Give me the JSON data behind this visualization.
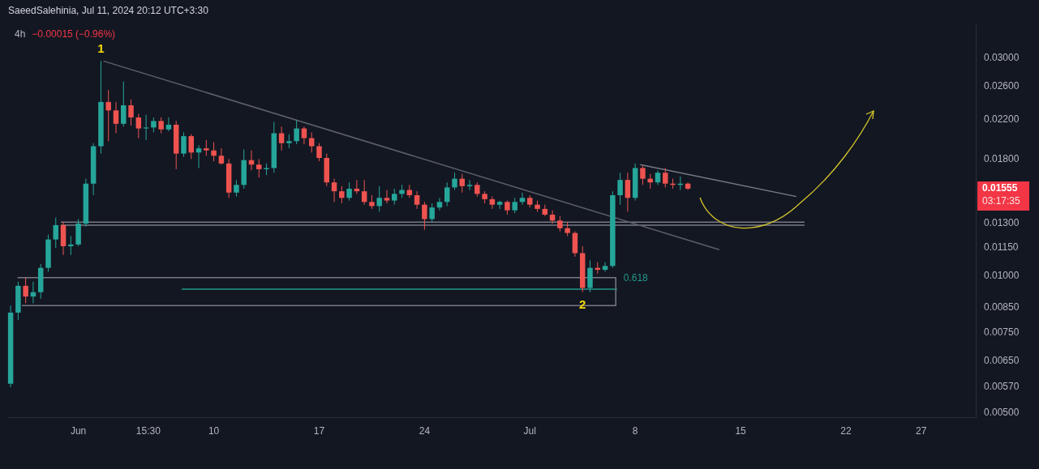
{
  "chart_data": {
    "type": "candlestick",
    "title": "4h",
    "subtitle": "−0.00015 (−0.96%)",
    "x": [
      "2024-05-27T12:00",
      "2024-05-28T00:00",
      "2024-05-28T12:00",
      "2024-05-29T00:00",
      "2024-05-29T12:00",
      "2024-05-30T00:00",
      "2024-05-30T12:00",
      "2024-05-31T00:00",
      "2024-05-31T12:00",
      "2024-06-01T00:00",
      "2024-06-01T12:00",
      "2024-06-02T00:00",
      "2024-06-02T12:00",
      "2024-06-03T00:00",
      "2024-06-03T12:00",
      "2024-06-04T00:00",
      "2024-06-04T12:00",
      "2024-06-05T00:00",
      "2024-06-05T12:00",
      "2024-06-06T00:00",
      "2024-06-06T12:00",
      "2024-06-07T00:00",
      "2024-06-07T12:00",
      "2024-06-08T00:00",
      "2024-06-08T12:00",
      "2024-06-09T00:00",
      "2024-06-09T12:00",
      "2024-06-10T00:00",
      "2024-06-10T12:00",
      "2024-06-11T00:00",
      "2024-06-11T12:00",
      "2024-06-12T00:00",
      "2024-06-12T12:00",
      "2024-06-13T00:00",
      "2024-06-13T12:00",
      "2024-06-14T00:00",
      "2024-06-14T12:00",
      "2024-06-15T00:00",
      "2024-06-15T12:00",
      "2024-06-16T00:00",
      "2024-06-16T12:00",
      "2024-06-17T00:00",
      "2024-06-17T12:00",
      "2024-06-18T00:00",
      "2024-06-18T12:00",
      "2024-06-19T00:00",
      "2024-06-19T12:00",
      "2024-06-20T00:00",
      "2024-06-20T12:00",
      "2024-06-21T00:00",
      "2024-06-21T12:00",
      "2024-06-22T00:00",
      "2024-06-22T12:00",
      "2024-06-23T00:00",
      "2024-06-23T12:00",
      "2024-06-24T00:00",
      "2024-06-24T12:00",
      "2024-06-25T00:00",
      "2024-06-25T12:00",
      "2024-06-26T00:00",
      "2024-06-26T12:00",
      "2024-06-27T00:00",
      "2024-06-27T12:00",
      "2024-06-28T00:00",
      "2024-06-28T12:00",
      "2024-06-29T00:00",
      "2024-06-29T12:00",
      "2024-06-30T00:00",
      "2024-06-30T12:00",
      "2024-07-01T00:00",
      "2024-07-01T12:00",
      "2024-07-02T00:00",
      "2024-07-02T12:00",
      "2024-07-03T00:00",
      "2024-07-03T12:00",
      "2024-07-04T00:00",
      "2024-07-04T12:00",
      "2024-07-05T00:00",
      "2024-07-05T12:00",
      "2024-07-06T00:00",
      "2024-07-06T12:00",
      "2024-07-07T00:00",
      "2024-07-07T12:00",
      "2024-07-08T00:00",
      "2024-07-08T12:00",
      "2024-07-09T00:00",
      "2024-07-09T12:00",
      "2024-07-10T00:00",
      "2024-07-10T12:00",
      "2024-07-11T00:00",
      "2024-07-11T12:00"
    ],
    "ohlc": [
      [
        0.0058,
        0.0086,
        0.0057,
        0.0083
      ],
      [
        0.0083,
        0.0097,
        0.008,
        0.0095
      ],
      [
        0.0095,
        0.0099,
        0.0087,
        0.009
      ],
      [
        0.009,
        0.0097,
        0.0087,
        0.0092
      ],
      [
        0.0092,
        0.0106,
        0.0089,
        0.0104
      ],
      [
        0.0104,
        0.0123,
        0.0102,
        0.012
      ],
      [
        0.012,
        0.0134,
        0.0115,
        0.0129
      ],
      [
        0.0129,
        0.0131,
        0.0111,
        0.0116
      ],
      [
        0.0116,
        0.0122,
        0.0111,
        0.0117
      ],
      [
        0.0117,
        0.0133,
        0.0116,
        0.013
      ],
      [
        0.013,
        0.0163,
        0.0128,
        0.0159
      ],
      [
        0.0159,
        0.0195,
        0.015,
        0.0192
      ],
      [
        0.0192,
        0.0295,
        0.0185,
        0.024
      ],
      [
        0.024,
        0.0255,
        0.0197,
        0.023
      ],
      [
        0.023,
        0.024,
        0.0205,
        0.0215
      ],
      [
        0.0215,
        0.0266,
        0.0212,
        0.0236
      ],
      [
        0.0236,
        0.0243,
        0.0213,
        0.0222
      ],
      [
        0.0222,
        0.0226,
        0.02,
        0.021
      ],
      [
        0.021,
        0.0225,
        0.0198,
        0.0211
      ],
      [
        0.0211,
        0.0222,
        0.0206,
        0.0218
      ],
      [
        0.0218,
        0.0222,
        0.0205,
        0.0209
      ],
      [
        0.0209,
        0.0222,
        0.0207,
        0.0214
      ],
      [
        0.0214,
        0.0218,
        0.0171,
        0.0185
      ],
      [
        0.0185,
        0.0206,
        0.0182,
        0.0202
      ],
      [
        0.0202,
        0.0204,
        0.018,
        0.0186
      ],
      [
        0.0186,
        0.0193,
        0.0172,
        0.019
      ],
      [
        0.019,
        0.0198,
        0.0183,
        0.0188
      ],
      [
        0.0188,
        0.0196,
        0.0178,
        0.0183
      ],
      [
        0.0183,
        0.019,
        0.0175,
        0.0176
      ],
      [
        0.0176,
        0.018,
        0.0148,
        0.0152
      ],
      [
        0.0152,
        0.0162,
        0.0149,
        0.0158
      ],
      [
        0.0158,
        0.0189,
        0.0155,
        0.0179
      ],
      [
        0.0179,
        0.0188,
        0.017,
        0.0175
      ],
      [
        0.0175,
        0.018,
        0.0164,
        0.0171
      ],
      [
        0.0171,
        0.0176,
        0.0166,
        0.0172
      ],
      [
        0.0172,
        0.0217,
        0.0168,
        0.0205
      ],
      [
        0.0205,
        0.0212,
        0.0188,
        0.0195
      ],
      [
        0.0195,
        0.0204,
        0.019,
        0.0197
      ],
      [
        0.0197,
        0.0219,
        0.0194,
        0.021
      ],
      [
        0.021,
        0.0212,
        0.0194,
        0.02
      ],
      [
        0.02,
        0.0206,
        0.0186,
        0.0192
      ],
      [
        0.0192,
        0.0195,
        0.0178,
        0.0181
      ],
      [
        0.0181,
        0.0185,
        0.0157,
        0.016
      ],
      [
        0.016,
        0.0163,
        0.0145,
        0.0153
      ],
      [
        0.0153,
        0.0157,
        0.0144,
        0.0148
      ],
      [
        0.0148,
        0.016,
        0.0146,
        0.0155
      ],
      [
        0.0155,
        0.0162,
        0.0151,
        0.0153
      ],
      [
        0.0153,
        0.0162,
        0.0143,
        0.0145
      ],
      [
        0.0145,
        0.015,
        0.014,
        0.0142
      ],
      [
        0.0142,
        0.0157,
        0.0138,
        0.0148
      ],
      [
        0.0148,
        0.0154,
        0.0144,
        0.0146
      ],
      [
        0.0146,
        0.0155,
        0.0143,
        0.0151
      ],
      [
        0.0151,
        0.0158,
        0.0148,
        0.0154
      ],
      [
        0.0154,
        0.0158,
        0.0148,
        0.015
      ],
      [
        0.015,
        0.0153,
        0.014,
        0.0143
      ],
      [
        0.0143,
        0.0145,
        0.0126,
        0.0133
      ],
      [
        0.0133,
        0.0144,
        0.0131,
        0.0141
      ],
      [
        0.0141,
        0.0148,
        0.0139,
        0.0145
      ],
      [
        0.0145,
        0.016,
        0.0142,
        0.0156
      ],
      [
        0.0156,
        0.0168,
        0.0154,
        0.0163
      ],
      [
        0.0163,
        0.0167,
        0.0152,
        0.0157
      ],
      [
        0.0157,
        0.0162,
        0.0154,
        0.0158
      ],
      [
        0.0158,
        0.016,
        0.0149,
        0.0151
      ],
      [
        0.0151,
        0.0153,
        0.0144,
        0.0147
      ],
      [
        0.0147,
        0.0149,
        0.014,
        0.0143
      ],
      [
        0.0143,
        0.0146,
        0.014,
        0.0145
      ],
      [
        0.0145,
        0.0146,
        0.0136,
        0.0139
      ],
      [
        0.0139,
        0.0148,
        0.0137,
        0.0145
      ],
      [
        0.0145,
        0.0152,
        0.0143,
        0.0148
      ],
      [
        0.0148,
        0.015,
        0.0141,
        0.0143
      ],
      [
        0.0143,
        0.0146,
        0.0138,
        0.014
      ],
      [
        0.014,
        0.0143,
        0.0135,
        0.0136
      ],
      [
        0.0136,
        0.0139,
        0.013,
        0.0132
      ],
      [
        0.0132,
        0.0135,
        0.0125,
        0.0127
      ],
      [
        0.0127,
        0.0131,
        0.0122,
        0.0124
      ],
      [
        0.0124,
        0.0125,
        0.011,
        0.0112
      ],
      [
        0.0112,
        0.0116,
        0.0092,
        0.0094
      ],
      [
        0.0094,
        0.0108,
        0.0092,
        0.0104
      ],
      [
        0.0104,
        0.0107,
        0.0101,
        0.0103
      ],
      [
        0.0103,
        0.0107,
        0.0102,
        0.0105
      ],
      [
        0.0105,
        0.0153,
        0.0104,
        0.015
      ],
      [
        0.015,
        0.0168,
        0.0143,
        0.0162
      ],
      [
        0.0162,
        0.0168,
        0.0138,
        0.0148
      ],
      [
        0.0148,
        0.0176,
        0.0146,
        0.0172
      ],
      [
        0.0172,
        0.0174,
        0.0158,
        0.0163
      ],
      [
        0.0163,
        0.0167,
        0.0155,
        0.016
      ],
      [
        0.016,
        0.017,
        0.0158,
        0.0168
      ],
      [
        0.0168,
        0.0172,
        0.0156,
        0.0159
      ],
      [
        0.0159,
        0.0163,
        0.0155,
        0.0158
      ],
      [
        0.0158,
        0.0165,
        0.0154,
        0.0159
      ],
      [
        0.0159,
        0.016,
        0.0154,
        0.0155
      ]
    ],
    "colors": [
      "#26a69a",
      "#26a69a",
      "#ef5350",
      "#26a69a",
      "#26a69a",
      "#26a69a",
      "#26a69a",
      "#ef5350",
      "#26a69a",
      "#26a69a",
      "#26a69a",
      "#26a69a",
      "#26a69a",
      "#ef5350",
      "#ef5350",
      "#26a69a",
      "#ef5350",
      "#ef5350",
      "#26a69a",
      "#26a69a",
      "#ef5350",
      "#26a69a",
      "#ef5350",
      "#26a69a",
      "#ef5350",
      "#26a69a",
      "#ef5350",
      "#ef5350",
      "#ef5350",
      "#ef5350",
      "#26a69a",
      "#26a69a",
      "#ef5350",
      "#ef5350",
      "#26a69a",
      "#26a69a",
      "#ef5350",
      "#26a69a",
      "#26a69a",
      "#ef5350",
      "#ef5350",
      "#ef5350",
      "#ef5350",
      "#ef5350",
      "#ef5350",
      "#26a69a",
      "#ef5350",
      "#ef5350",
      "#ef5350",
      "#26a69a",
      "#ef5350",
      "#26a69a",
      "#26a69a",
      "#ef5350",
      "#ef5350",
      "#ef5350",
      "#26a69a",
      "#26a69a",
      "#26a69a",
      "#26a69a",
      "#ef5350",
      "#26a69a",
      "#ef5350",
      "#ef5350",
      "#ef5350",
      "#26a69a",
      "#ef5350",
      "#26a69a",
      "#26a69a",
      "#ef5350",
      "#ef5350",
      "#ef5350",
      "#ef5350",
      "#ef5350",
      "#ef5350",
      "#ef5350",
      "#ef5350",
      "#26a69a",
      "#ef5350",
      "#26a69a",
      "#26a69a",
      "#26a69a",
      "#ef5350",
      "#26a69a",
      "#ef5350",
      "#ef5350",
      "#26a69a",
      "#ef5350",
      "#ef5350",
      "#26a69a",
      "#ef5350"
    ],
    "series": [
      {
        "type": "line",
        "color": "#5d606b",
        "x": [
          "2024-06-02T16:00",
          "2024-07-13T14:00"
        ],
        "values": [
          0.0295,
          0.0114
        ]
      },
      {
        "type": "line",
        "color": "#787b86",
        "x": [
          "2024-05-30T20:00",
          "2024-07-19T06:00"
        ],
        "values": [
          0.0131,
          0.0131
        ]
      },
      {
        "type": "line",
        "color": "#787b86",
        "x": [
          "2024-05-30T20:00",
          "2024-07-19T06:00"
        ],
        "values": [
          0.0129,
          0.0129
        ]
      },
      {
        "type": "line",
        "color": "#787b86",
        "x": [
          "2024-05-27T23:00",
          "2024-07-06T17:00"
        ],
        "values": [
          0.0099,
          0.0099
        ]
      },
      {
        "type": "line",
        "color": "#787b86",
        "x": [
          "2024-05-28T06:00",
          "2024-07-06T17:00"
        ],
        "values": [
          0.0086,
          0.0086
        ]
      },
      {
        "type": "line",
        "color": "#787b86",
        "x": [
          "2024-07-06T17:00",
          "2024-07-06T17:00"
        ],
        "values": [
          0.0099,
          0.0086
        ]
      },
      {
        "type": "line",
        "name": "0.618",
        "color": "#22998a",
        "x": [
          "2024-06-07T21:00",
          "2024-07-06T19:00"
        ],
        "values": [
          0.00934,
          0.00934
        ]
      },
      {
        "type": "line",
        "color": "#787b86",
        "x": [
          "2024-07-08T08:00",
          "2024-07-18T17:00"
        ],
        "values": [
          0.0175,
          0.0149
        ]
      }
    ],
    "marker": "none",
    "xlim": [
      "2024-05-27T08:00",
      "2024-07-30T15:00"
    ],
    "xticks": [
      {
        "value": "2024-06-01",
        "label": "Jun"
      },
      {
        "value": "2024-06-05T15:30",
        "label": "15:30"
      },
      {
        "value": "2024-06-10",
        "label": "10"
      },
      {
        "value": "2024-06-17",
        "label": "17"
      },
      {
        "value": "2024-06-24",
        "label": "24"
      },
      {
        "value": "2024-07-01",
        "label": "Jul"
      },
      {
        "value": "2024-07-08",
        "label": "8"
      },
      {
        "value": "2024-07-15",
        "label": "15"
      },
      {
        "value": "2024-07-22",
        "label": "22"
      },
      {
        "value": "2024-07-27",
        "label": "27"
      }
    ],
    "log": true,
    "ylim": [
      0.0049,
      0.0355
    ],
    "yticks": [
      {
        "value": 0.005,
        "label": "0.00500"
      },
      {
        "value": 0.0057,
        "label": "0.00570"
      },
      {
        "value": 0.0065,
        "label": "0.00650"
      },
      {
        "value": 0.0075,
        "label": "0.00750"
      },
      {
        "value": 0.0085,
        "label": "0.00850"
      },
      {
        "value": 0.01,
        "label": "0.01000"
      },
      {
        "value": 0.0115,
        "label": "0.01150"
      },
      {
        "value": 0.013,
        "label": "0.01300"
      },
      {
        "value": 0.018,
        "label": "0.01800"
      },
      {
        "value": 0.022,
        "label": "0.02200"
      },
      {
        "value": 0.026,
        "label": "0.02600"
      },
      {
        "value": 0.03,
        "label": "0.03000"
      }
    ],
    "annotations": [
      "SaeedSalehinia, Jul 11, 2024 20:12 UTC+3:30",
      {
        "text": "1",
        "x": "2024-06-02T12:00",
        "y": 0.0295
      },
      {
        "text": "2",
        "x": "2024-07-04T12:00",
        "y": 0.0092
      },
      "0.01555",
      "03:17:35"
    ]
  }
}
